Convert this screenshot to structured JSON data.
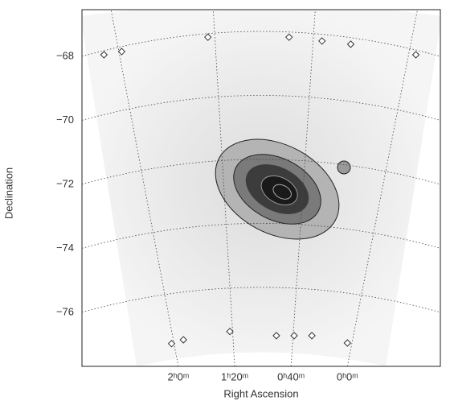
{
  "chart_data": {
    "type": "scatter",
    "x_label": "Right Ascension",
    "y_label": "Declination",
    "xlim": [
      3.14,
      -1.1
    ],
    "ylim": [
      -77.69,
      -66.54
    ],
    "xticks": [
      {
        "value": 2,
        "label": "2ʰ0ᵐ"
      },
      {
        "value": 1.333,
        "label": "1ʰ20ᵐ"
      },
      {
        "value": 0.667,
        "label": "0ʰ40ᵐ"
      },
      {
        "value": 0,
        "label": "0ʰ0ᵐ"
      }
    ],
    "yticks": [
      {
        "value": -68,
        "label": "−68"
      },
      {
        "value": -70,
        "label": "−70"
      },
      {
        "value": -72,
        "label": "−72"
      },
      {
        "value": -74,
        "label": "−74"
      },
      {
        "value": -76,
        "label": "−76"
      }
    ],
    "grid": true,
    "series": [
      {
        "marker": "diamond",
        "color": "#333333",
        "x": [
          2.88,
          2.67,
          1.65,
          0.69,
          0.3,
          -0.04,
          -0.81,
          2.08,
          1.94,
          1.39,
          0.84,
          0.63,
          0.42,
          0.0
        ],
        "y": [
          -67.95,
          -67.85,
          -67.4,
          -67.4,
          -67.52,
          -67.62,
          -67.95,
          -76.98,
          -76.86,
          -76.6,
          -76.73,
          -76.73,
          -76.73,
          -76.96
        ]
      }
    ]
  }
}
